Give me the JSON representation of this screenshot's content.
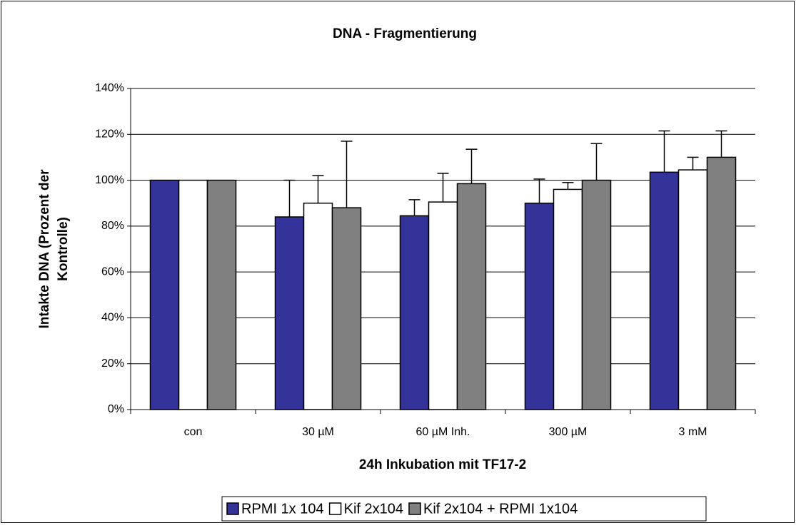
{
  "chart_data": {
    "type": "bar",
    "title": "DNA - Fragmentierung",
    "x_label": "24h Inkubation mit TF17-2",
    "y_label": [
      "Intakte DNA (Prozent der",
      "Kontrolle)"
    ],
    "categories": [
      "con",
      "30 µM",
      "60 µM Inh.",
      "300 µM",
      "3 mM"
    ],
    "series": [
      {
        "name": "RPMI 1x 104",
        "color": "#333399",
        "values": [
          100,
          84,
          84.5,
          90,
          103.5
        ],
        "errors": [
          0,
          16,
          7,
          10.5,
          18
        ]
      },
      {
        "name": "Kif 2x104",
        "color": "#ffffff",
        "values": [
          100,
          90,
          90.5,
          96,
          104.5
        ],
        "errors": [
          0,
          12,
          12.5,
          3,
          5.5
        ]
      },
      {
        "name": "Kif 2x104 + RPMI 1x104",
        "color": "#808080",
        "values": [
          100,
          88,
          98.5,
          100,
          110
        ],
        "errors": [
          0,
          29,
          15,
          16,
          11.5
        ]
      }
    ],
    "ylim": [
      0,
      140
    ],
    "yticks": [
      {
        "value": 0,
        "label": "0%"
      },
      {
        "value": 20,
        "label": "20%"
      },
      {
        "value": 40,
        "label": "40%"
      },
      {
        "value": 60,
        "label": "60%"
      },
      {
        "value": 80,
        "label": "80%"
      },
      {
        "value": 100,
        "label": "100%"
      },
      {
        "value": 120,
        "label": "120%"
      },
      {
        "value": 140,
        "label": "140%"
      }
    ],
    "grid": true,
    "legend": "bottom"
  }
}
